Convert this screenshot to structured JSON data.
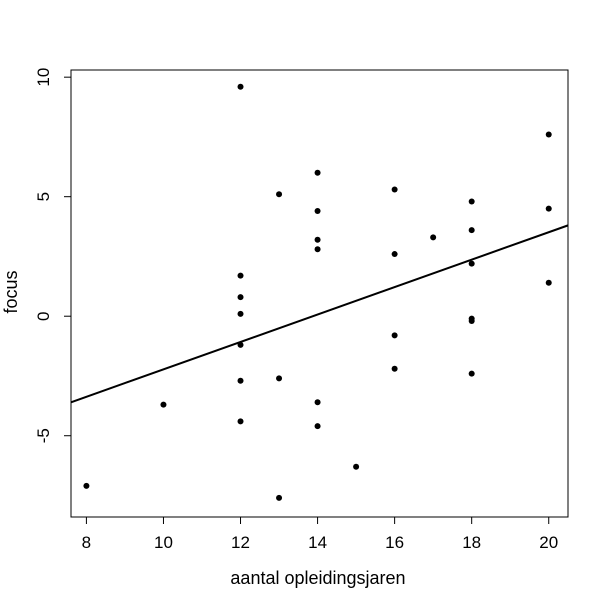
{
  "chart_data": {
    "type": "scatter",
    "title": "",
    "xlabel": "aantal opleidingsjaren",
    "ylabel": "focus",
    "xlim": [
      7.6,
      20.5
    ],
    "ylim": [
      -8.4,
      10.3
    ],
    "x_ticks": [
      8,
      10,
      12,
      14,
      16,
      18,
      20
    ],
    "y_ticks": [
      -5,
      0,
      5,
      10
    ],
    "grid": false,
    "colors": {
      "points": "#000000",
      "line": "#000000"
    },
    "points": [
      {
        "x": 8,
        "y": -7.1
      },
      {
        "x": 10,
        "y": -3.7
      },
      {
        "x": 12,
        "y": 9.6
      },
      {
        "x": 12,
        "y": 1.7
      },
      {
        "x": 12,
        "y": 0.8
      },
      {
        "x": 12,
        "y": 0.1
      },
      {
        "x": 12,
        "y": -1.2
      },
      {
        "x": 12,
        "y": -2.7
      },
      {
        "x": 12,
        "y": -4.4
      },
      {
        "x": 13,
        "y": 5.1
      },
      {
        "x": 13,
        "y": -2.6
      },
      {
        "x": 13,
        "y": -7.6
      },
      {
        "x": 14,
        "y": 6.0
      },
      {
        "x": 14,
        "y": 4.4
      },
      {
        "x": 14,
        "y": 3.2
      },
      {
        "x": 14,
        "y": 2.8
      },
      {
        "x": 14,
        "y": -3.6
      },
      {
        "x": 14,
        "y": -4.6
      },
      {
        "x": 15,
        "y": -6.3
      },
      {
        "x": 16,
        "y": 5.3
      },
      {
        "x": 16,
        "y": 2.6
      },
      {
        "x": 16,
        "y": -0.8
      },
      {
        "x": 16,
        "y": -2.2
      },
      {
        "x": 17,
        "y": 3.3
      },
      {
        "x": 18,
        "y": 4.8
      },
      {
        "x": 18,
        "y": 3.6
      },
      {
        "x": 18,
        "y": 2.2
      },
      {
        "x": 18,
        "y": -0.1
      },
      {
        "x": 18,
        "y": -0.2
      },
      {
        "x": 18,
        "y": -2.4
      },
      {
        "x": 20,
        "y": 7.6
      },
      {
        "x": 20,
        "y": 4.5
      },
      {
        "x": 20,
        "y": 1.4
      }
    ],
    "regression_line": {
      "x1": 7.6,
      "y1": -3.6,
      "x2": 20.5,
      "y2": 3.8
    }
  }
}
